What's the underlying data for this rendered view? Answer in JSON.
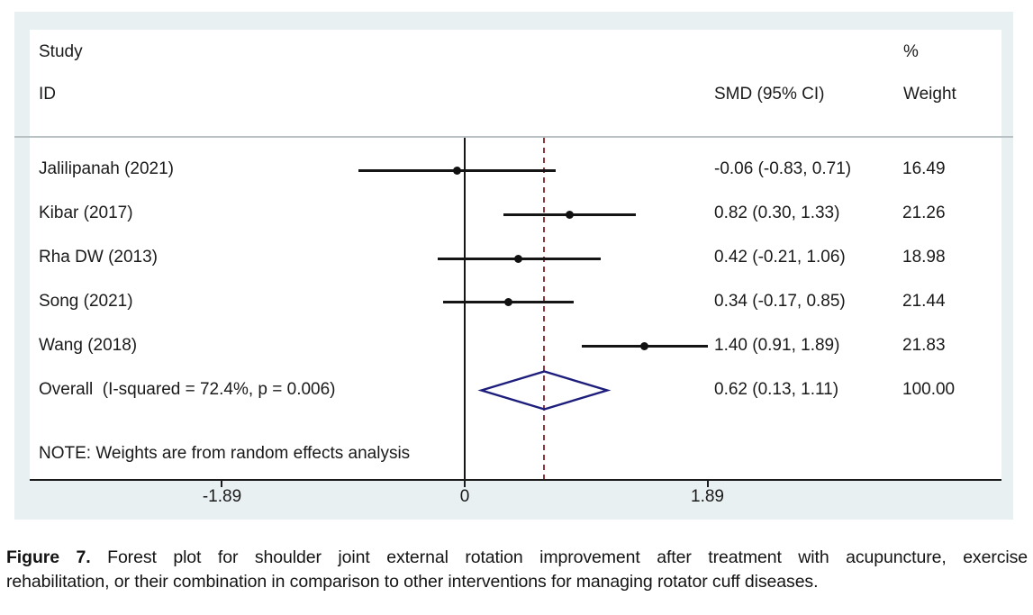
{
  "forest_plot": {
    "header": {
      "col_study_line1": "Study",
      "col_study_line2": "ID",
      "col_smd": "SMD (95% CI)",
      "col_pct": "%",
      "col_weight": "Weight"
    },
    "note": "NOTE: Weights are from random effects analysis",
    "colors": {
      "plot_background": "#e9f0f2",
      "inner_background": "#ffffff",
      "ci_line": "#151515",
      "null_line": "#161616",
      "dashed_overall_line": "#90353b",
      "diamond_outline": "#1d1d7c",
      "separator_line": "#b9c1c5"
    }
  },
  "chart_data": {
    "type": "forest",
    "x_axis": {
      "ticks": [
        -1.89,
        0,
        1.89
      ],
      "tick_labels": [
        "-1.89",
        "0",
        "1.89"
      ]
    },
    "null_line_x": 0,
    "overall_line_x": 0.62,
    "rows": [
      {
        "kind": "study",
        "label": "Jalilipanah (2021)",
        "smd": -0.06,
        "ci_low": -0.83,
        "ci_high": 0.71,
        "smd_ci_text": "-0.06 (-0.83, 0.71)",
        "weight_text": "16.49"
      },
      {
        "kind": "study",
        "label": "Kibar (2017)",
        "smd": 0.82,
        "ci_low": 0.3,
        "ci_high": 1.33,
        "smd_ci_text": "0.82 (0.30, 1.33)",
        "weight_text": "21.26"
      },
      {
        "kind": "study",
        "label": "Rha DW (2013)",
        "smd": 0.42,
        "ci_low": -0.21,
        "ci_high": 1.06,
        "smd_ci_text": "0.42 (-0.21, 1.06)",
        "weight_text": "18.98"
      },
      {
        "kind": "study",
        "label": "Song (2021)",
        "smd": 0.34,
        "ci_low": -0.17,
        "ci_high": 0.85,
        "smd_ci_text": "0.34 (-0.17, 0.85)",
        "weight_text": "21.44"
      },
      {
        "kind": "study",
        "label": "Wang (2018)",
        "smd": 1.4,
        "ci_low": 0.91,
        "ci_high": 1.89,
        "smd_ci_text": "1.40 (0.91, 1.89)",
        "weight_text": "21.83"
      },
      {
        "kind": "overall",
        "label": "Overall  (I-squared = 72.4%, p = 0.006)",
        "smd": 0.62,
        "ci_low": 0.13,
        "ci_high": 1.11,
        "smd_ci_text": "0.62 (0.13, 1.11)",
        "weight_text": "100.00"
      }
    ]
  },
  "caption": {
    "figure_label": "Figure 7.",
    "line1_rest": " Forest plot for shoulder joint external rotation improvement after treatment with acupuncture, exercise",
    "line2": "rehabilitation, or their combination in comparison to other interventions for managing rotator cuff diseases."
  }
}
